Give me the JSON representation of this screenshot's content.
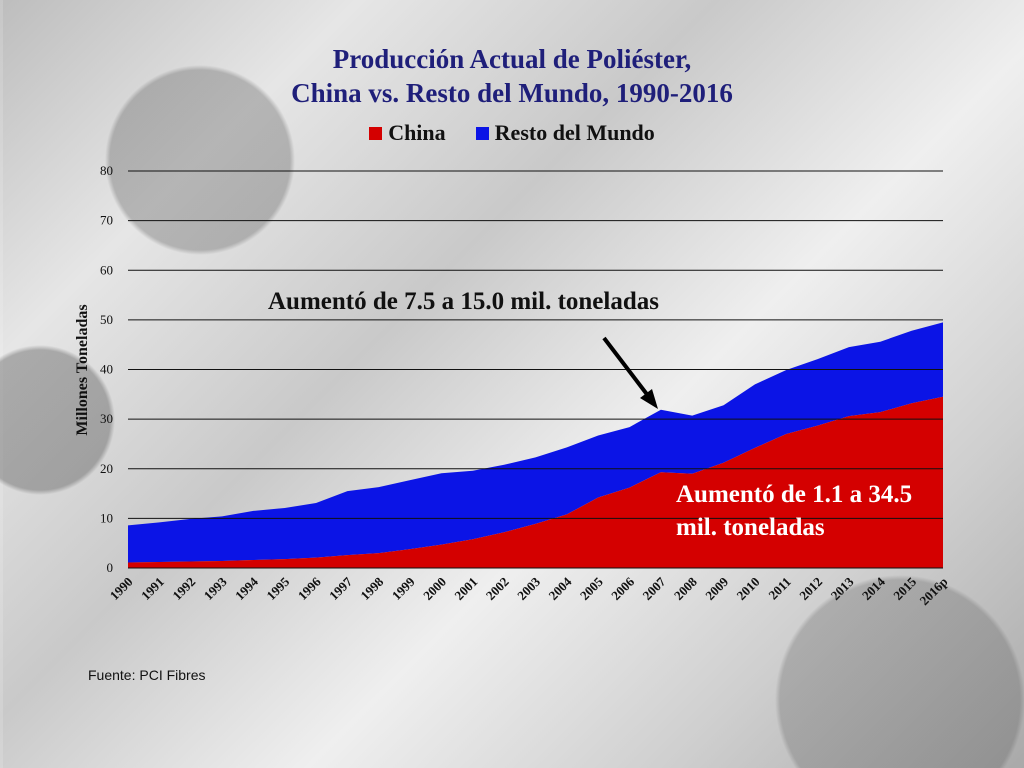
{
  "title": {
    "line1": "Producción Actual de Poliéster,",
    "line2": "China vs. Resto del Mundo, 1990-2016"
  },
  "legend": {
    "china": "China",
    "rest": "Resto del Mundo"
  },
  "colors": {
    "china": "#d40000",
    "rest": "#0b14e6",
    "title": "#1f1f7a"
  },
  "ylabel": "Millones Toneladas",
  "source": "Fuente: PCI Fibres",
  "annotations": {
    "top": "Aumentó de 7.5 a 15.0 mil. toneladas",
    "bottom": "Aumentó de 1.1 a 34.5 mil. toneladas"
  },
  "chart_data": {
    "type": "area",
    "stacked": true,
    "title": "Producción Actual de Poliéster, China vs. Resto del Mundo, 1990-2016",
    "xlabel": "",
    "ylabel": "Millones Toneladas",
    "ylim": [
      0,
      80
    ],
    "yticks": [
      0,
      10,
      20,
      30,
      40,
      50,
      60,
      70,
      80
    ],
    "grid": true,
    "legend_position": "top",
    "categories": [
      "1990",
      "1991",
      "1992",
      "1993",
      "1994",
      "1995",
      "1996",
      "1997",
      "1998",
      "1999",
      "2000",
      "2001",
      "2002",
      "2003",
      "2004",
      "2005",
      "2006",
      "2007",
      "2008",
      "2009",
      "2010",
      "2011",
      "2012",
      "2013",
      "2014",
      "2015",
      "2016p"
    ],
    "series": [
      {
        "name": "China",
        "values": [
          1.1,
          1.2,
          1.3,
          1.4,
          1.6,
          1.8,
          2.1,
          2.6,
          3.0,
          3.8,
          4.7,
          5.8,
          7.2,
          8.9,
          10.8,
          14.2,
          16.2,
          19.3,
          19.0,
          21.2,
          24.2,
          27.0,
          28.7,
          30.6,
          31.4,
          33.2,
          34.5
        ]
      },
      {
        "name": "Resto del Mundo",
        "values": [
          7.5,
          8.0,
          8.6,
          9.0,
          9.9,
          10.3,
          11.0,
          12.9,
          13.3,
          13.9,
          14.4,
          13.8,
          13.6,
          13.4,
          13.5,
          12.5,
          12.2,
          12.6,
          11.7,
          11.6,
          12.8,
          12.9,
          13.4,
          13.9,
          14.2,
          14.6,
          15.0
        ]
      }
    ]
  }
}
